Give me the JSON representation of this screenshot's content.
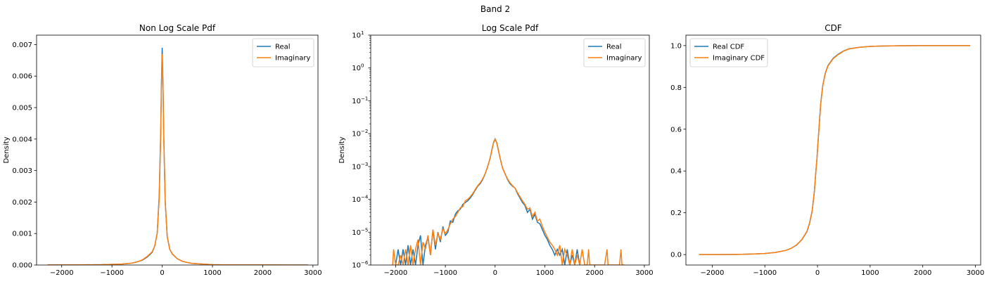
{
  "suptitle": "Band 2",
  "colors": {
    "real": "#1f77b4",
    "imaginary": "#ff7f0e"
  },
  "chart_data": [
    {
      "type": "line",
      "title": "Non Log Scale Pdf",
      "xlabel": "",
      "ylabel": "Density",
      "xlim": [
        -2500,
        3100
      ],
      "ylim": [
        0,
        0.0073
      ],
      "yscale": "linear",
      "xticks": [
        -2000,
        -1000,
        0,
        1000,
        2000,
        3000
      ],
      "xtick_labels": [
        "−2000",
        "−1000",
        "0",
        "1000",
        "2000",
        "3000"
      ],
      "yticks": [
        0,
        0.001,
        0.002,
        0.003,
        0.004,
        0.005,
        0.006,
        0.007
      ],
      "ytick_labels": [
        "0.000",
        "0.001",
        "0.002",
        "0.003",
        "0.004",
        "0.005",
        "0.006",
        "0.007"
      ],
      "legend": {
        "location": "upper right",
        "entries": [
          "Real",
          "Imaginary"
        ]
      },
      "series": [
        {
          "name": "Real",
          "color": "#1f77b4",
          "x": [
            -2280,
            -2000,
            -1600,
            -1200,
            -1000,
            -800,
            -600,
            -500,
            -400,
            -300,
            -200,
            -150,
            -100,
            -60,
            -30,
            -15,
            0,
            15,
            30,
            60,
            100,
            150,
            200,
            300,
            400,
            500,
            600,
            800,
            1000,
            1200,
            1600,
            2000,
            2500,
            2900
          ],
          "y": [
            3e-06,
            3e-06,
            5e-06,
            1e-05,
            2e-05,
            3e-05,
            6e-05,
            0.0001,
            0.00015,
            0.00025,
            0.0004,
            0.0006,
            0.001,
            0.0022,
            0.0042,
            0.0058,
            0.0069,
            0.0058,
            0.0042,
            0.002,
            0.0009,
            0.0005,
            0.00035,
            0.0002,
            0.00012,
            8e-05,
            5e-05,
            3e-05,
            1e-05,
            7e-06,
            3e-06,
            2e-06,
            1e-06,
            1e-06
          ]
        },
        {
          "name": "Imaginary",
          "color": "#ff7f0e",
          "x": [
            -2280,
            -2000,
            -1600,
            -1200,
            -1000,
            -800,
            -600,
            -500,
            -400,
            -300,
            -200,
            -150,
            -100,
            -60,
            -30,
            -15,
            0,
            15,
            30,
            60,
            100,
            150,
            200,
            300,
            400,
            500,
            600,
            800,
            1000,
            1200,
            1600,
            2000,
            2500,
            2900
          ],
          "y": [
            3e-06,
            3e-06,
            5e-06,
            1e-05,
            2e-05,
            3e-05,
            6e-05,
            0.0001,
            0.00016,
            0.00027,
            0.00042,
            0.0006,
            0.001,
            0.0021,
            0.0041,
            0.0057,
            0.0067,
            0.0057,
            0.0041,
            0.002,
            0.0009,
            0.0005,
            0.00036,
            0.0002,
            0.00012,
            8e-05,
            5e-05,
            3e-05,
            1e-05,
            7e-06,
            3e-06,
            2e-06,
            1e-06,
            1e-06
          ]
        }
      ]
    },
    {
      "type": "line",
      "title": "Log Scale Pdf",
      "xlabel": "",
      "ylabel": "Density",
      "xlim": [
        -2500,
        3100
      ],
      "ylim": [
        1e-06,
        10
      ],
      "yscale": "log",
      "xticks": [
        -2000,
        -1000,
        0,
        1000,
        2000,
        3000
      ],
      "xtick_labels": [
        "−2000",
        "−1000",
        "0",
        "1000",
        "2000",
        "3000"
      ],
      "yticks": [
        1e-06,
        1e-05,
        0.0001,
        0.001,
        0.01,
        0.1,
        1,
        10
      ],
      "ytick_labels": [
        "10",
        "10",
        "10",
        "10",
        "10",
        "10",
        "10",
        "10"
      ],
      "ytick_exponents": [
        "−6",
        "−5",
        "−4",
        "−3",
        "−2",
        "−1",
        "0",
        "1"
      ],
      "legend": {
        "location": "upper right",
        "entries": [
          "Real",
          "Imaginary"
        ]
      },
      "series": [
        {
          "name": "Real",
          "color": "#1f77b4",
          "x": [
            -2000,
            -1950,
            -1900,
            -1850,
            -1800,
            -1750,
            -1700,
            -1650,
            -1600,
            -1550,
            -1500,
            -1450,
            -1400,
            -1350,
            -1300,
            -1250,
            -1200,
            -1150,
            -1100,
            -1050,
            -1000,
            -950,
            -900,
            -850,
            -800,
            -750,
            -700,
            -650,
            -600,
            -550,
            -500,
            -450,
            -400,
            -350,
            -300,
            -250,
            -200,
            -150,
            -100,
            -60,
            -30,
            0,
            30,
            60,
            100,
            150,
            200,
            250,
            300,
            350,
            400,
            450,
            500,
            550,
            600,
            650,
            700,
            750,
            800,
            850,
            900,
            950,
            1000,
            1050,
            1100,
            1150,
            1200,
            1250,
            1300,
            1350,
            1400,
            1450,
            1500,
            1550,
            1600,
            1650,
            1700
          ],
          "y": [
            1e-06,
            3e-06,
            1e-06,
            3e-06,
            1e-06,
            4e-06,
            1e-06,
            3e-06,
            1e-06,
            4e-06,
            8e-06,
            1e-06,
            4e-06,
            7e-06,
            2e-06,
            1.2e-05,
            3e-06,
            1e-05,
            5e-06,
            1.5e-05,
            8e-06,
            1e-05,
            2.2e-05,
            2e-05,
            3.5e-05,
            4.5e-05,
            5e-05,
            7e-05,
            8e-05,
            9e-05,
            0.00011,
            0.00014,
            0.00019,
            0.00025,
            0.0003,
            0.0004,
            0.0006,
            0.001,
            0.0018,
            0.0035,
            0.0055,
            0.0069,
            0.0055,
            0.0035,
            0.0018,
            0.0009,
            0.0006,
            0.0004,
            0.0003,
            0.00025,
            0.00022,
            0.00015,
            0.00011,
            8e-05,
            6.5e-05,
            4e-05,
            5e-05,
            2.5e-05,
            3.5e-05,
            2e-05,
            1.8e-05,
            1.2e-05,
            8e-06,
            6e-06,
            4e-06,
            3e-06,
            2e-06,
            3e-06,
            2e-06,
            3e-06,
            1e-06,
            3e-06,
            1e-06,
            2e-06,
            1e-06,
            3e-06,
            1e-06
          ]
        },
        {
          "name": "Imaginary",
          "color": "#ff7f0e",
          "x": [
            -2060,
            -2040,
            -2000,
            -1950,
            -1900,
            -1850,
            -1800,
            -1750,
            -1700,
            -1650,
            -1600,
            -1550,
            -1500,
            -1450,
            -1400,
            -1350,
            -1300,
            -1250,
            -1200,
            -1150,
            -1100,
            -1050,
            -1000,
            -950,
            -900,
            -850,
            -800,
            -750,
            -700,
            -650,
            -600,
            -550,
            -500,
            -450,
            -400,
            -350,
            -300,
            -250,
            -200,
            -150,
            -100,
            -60,
            -30,
            0,
            30,
            60,
            100,
            150,
            200,
            250,
            300,
            350,
            400,
            450,
            500,
            550,
            600,
            650,
            700,
            750,
            800,
            850,
            900,
            950,
            1000,
            1050,
            1100,
            1150,
            1200,
            1250,
            1300,
            1350,
            1400,
            1450,
            1500,
            1550,
            1600,
            1650,
            1700,
            1750,
            1800,
            1850,
            1880,
            1900,
            2200,
            2250,
            2270,
            2300,
            2500,
            2530,
            2550,
            2600
          ],
          "y": [
            1e-06,
            3e-06,
            1e-06,
            1e-06,
            2e-06,
            1e-06,
            3e-06,
            1e-06,
            4e-06,
            1e-06,
            3e-06,
            6e-06,
            1e-06,
            5e-06,
            3e-06,
            8e-06,
            2e-06,
            1.2e-05,
            4e-06,
            9e-06,
            6e-06,
            1.3e-05,
            9e-06,
            1.2e-05,
            1.8e-05,
            2.5e-05,
            3e-05,
            4e-05,
            5.5e-05,
            6e-05,
            9e-05,
            0.0001,
            0.00012,
            0.00015,
            0.0002,
            0.00026,
            0.00032,
            0.00042,
            0.0006,
            0.001,
            0.0018,
            0.0034,
            0.0054,
            0.0067,
            0.0054,
            0.0034,
            0.0018,
            0.0009,
            0.0006,
            0.00042,
            0.00032,
            0.00026,
            0.00022,
            0.00016,
            0.00012,
            9e-05,
            7e-05,
            5e-05,
            5.5e-05,
            3e-05,
            4e-05,
            2.2e-05,
            2.5e-05,
            1.5e-05,
            1e-05,
            7e-06,
            5e-06,
            4e-06,
            3e-06,
            2e-06,
            4e-06,
            1e-06,
            3e-06,
            2e-06,
            1e-06,
            3e-06,
            1e-06,
            2e-06,
            1e-06,
            3e-06,
            1e-06,
            1e-06,
            3e-06,
            1e-06,
            1e-06,
            3e-06,
            1e-06,
            1e-06,
            1e-06,
            3e-06,
            1e-06,
            1e-06
          ]
        }
      ]
    },
    {
      "type": "line",
      "title": "CDF",
      "xlabel": "",
      "ylabel": "",
      "xlim": [
        -2500,
        3100
      ],
      "ylim": [
        -0.05,
        1.05
      ],
      "yscale": "linear",
      "xticks": [
        -2000,
        -1000,
        0,
        1000,
        2000,
        3000
      ],
      "xtick_labels": [
        "−2000",
        "−1000",
        "0",
        "1000",
        "2000",
        "3000"
      ],
      "yticks": [
        0,
        0.2,
        0.4,
        0.6,
        0.8,
        1.0
      ],
      "ytick_labels": [
        "0.0",
        "0.2",
        "0.4",
        "0.6",
        "0.8",
        "1.0"
      ],
      "legend": {
        "location": "upper left",
        "entries": [
          "Real CDF",
          "Imaginary CDF"
        ]
      },
      "series": [
        {
          "name": "Real CDF",
          "color": "#1f77b4",
          "x": [
            -2250,
            -2000,
            -1500,
            -1200,
            -1000,
            -800,
            -600,
            -500,
            -400,
            -300,
            -200,
            -150,
            -100,
            -60,
            -30,
            -10,
            0,
            10,
            30,
            60,
            100,
            150,
            200,
            300,
            400,
            500,
            600,
            800,
            1000,
            1200,
            1500,
            2000,
            2500,
            2900
          ],
          "y": [
            0,
            0,
            0.001,
            0.003,
            0.005,
            0.01,
            0.02,
            0.03,
            0.045,
            0.07,
            0.11,
            0.15,
            0.21,
            0.3,
            0.4,
            0.46,
            0.5,
            0.54,
            0.61,
            0.72,
            0.81,
            0.87,
            0.905,
            0.94,
            0.96,
            0.975,
            0.985,
            0.992,
            0.996,
            0.998,
            0.999,
            1,
            1,
            1
          ]
        },
        {
          "name": "Imaginary CDF",
          "color": "#ff7f0e",
          "x": [
            -2250,
            -2000,
            -1500,
            -1200,
            -1000,
            -800,
            -600,
            -500,
            -400,
            -300,
            -200,
            -150,
            -100,
            -60,
            -30,
            -10,
            0,
            10,
            30,
            60,
            100,
            150,
            200,
            300,
            400,
            500,
            600,
            800,
            1000,
            1200,
            1500,
            2000,
            2500,
            2900
          ],
          "y": [
            0,
            0,
            0.001,
            0.003,
            0.005,
            0.01,
            0.02,
            0.03,
            0.046,
            0.071,
            0.112,
            0.152,
            0.212,
            0.302,
            0.402,
            0.462,
            0.5,
            0.538,
            0.608,
            0.718,
            0.808,
            0.868,
            0.903,
            0.938,
            0.958,
            0.974,
            0.984,
            0.992,
            0.996,
            0.998,
            0.999,
            1,
            1,
            1
          ]
        }
      ]
    }
  ]
}
